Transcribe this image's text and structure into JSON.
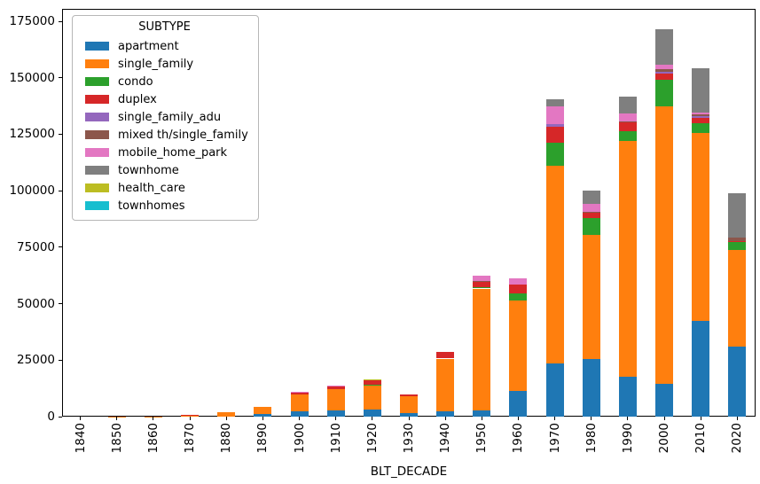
{
  "chart_data": {
    "type": "bar",
    "stacked": true,
    "title": "",
    "xlabel": "BLT_DECADE",
    "ylabel": "",
    "ylim": [
      0,
      180500
    ],
    "yticks": [
      0,
      25000,
      50000,
      75000,
      100000,
      125000,
      150000,
      175000
    ],
    "grid": false,
    "legend": {
      "title": "SUBTYPE",
      "position": "upper left"
    },
    "categories": [
      "1840",
      "1850",
      "1860",
      "1870",
      "1880",
      "1890",
      "1900",
      "1910",
      "1920",
      "1930",
      "1940",
      "1950",
      "1960",
      "1970",
      "1980",
      "1990",
      "2000",
      "2010",
      "2020"
    ],
    "series": [
      {
        "name": "apartment",
        "color": "#1f77b4",
        "values": [
          0,
          0,
          0,
          0,
          0,
          1000,
          2200,
          2600,
          3300,
          1700,
          2300,
          2900,
          11300,
          23700,
          25500,
          17500,
          14500,
          42500,
          31000
        ]
      },
      {
        "name": "single_family",
        "color": "#ff7f0e",
        "values": [
          30,
          60,
          120,
          800,
          1800,
          3500,
          7700,
          9400,
          10800,
          7300,
          23400,
          53800,
          40200,
          87500,
          55000,
          104600,
          123000,
          82900,
          42600
        ]
      },
      {
        "name": "condo",
        "color": "#2ca02c",
        "values": [
          0,
          0,
          0,
          0,
          0,
          0,
          0,
          0,
          100,
          0,
          0,
          500,
          3200,
          10200,
          7500,
          4300,
          11700,
          4500,
          3800
        ]
      },
      {
        "name": "duplex",
        "color": "#d62728",
        "values": [
          0,
          0,
          0,
          100,
          0,
          0,
          800,
          1200,
          1900,
          1000,
          3000,
          2700,
          3900,
          7000,
          2100,
          3900,
          2700,
          2300,
          400
        ]
      },
      {
        "name": "single_family_adu",
        "color": "#9467bd",
        "values": [
          0,
          0,
          0,
          0,
          0,
          0,
          0,
          0,
          0,
          0,
          0,
          0,
          0,
          1200,
          0,
          0,
          800,
          700,
          0
        ]
      },
      {
        "name": "mixed th/single_family",
        "color": "#8c564b",
        "values": [
          0,
          0,
          0,
          0,
          0,
          0,
          0,
          0,
          0,
          0,
          0,
          300,
          0,
          0,
          400,
          500,
          1000,
          800,
          1500
        ]
      },
      {
        "name": "mobile_home_park",
        "color": "#e377c2",
        "values": [
          0,
          0,
          0,
          0,
          0,
          0,
          200,
          700,
          0,
          0,
          0,
          2000,
          2600,
          7800,
          3600,
          3500,
          1900,
          800,
          0
        ]
      },
      {
        "name": "townhome",
        "color": "#7f7f7f",
        "values": [
          0,
          0,
          0,
          0,
          0,
          0,
          0,
          0,
          0,
          0,
          0,
          0,
          0,
          3100,
          5900,
          7200,
          15900,
          19900,
          19700
        ]
      },
      {
        "name": "health_care",
        "color": "#bcbd22",
        "values": [
          0,
          0,
          0,
          0,
          0,
          0,
          0,
          0,
          400,
          0,
          0,
          0,
          0,
          0,
          0,
          0,
          0,
          0,
          0
        ]
      },
      {
        "name": "townhomes",
        "color": "#17becf",
        "values": [
          0,
          0,
          0,
          0,
          0,
          0,
          0,
          0,
          0,
          0,
          0,
          0,
          0,
          0,
          0,
          0,
          0,
          0,
          0
        ]
      }
    ]
  }
}
